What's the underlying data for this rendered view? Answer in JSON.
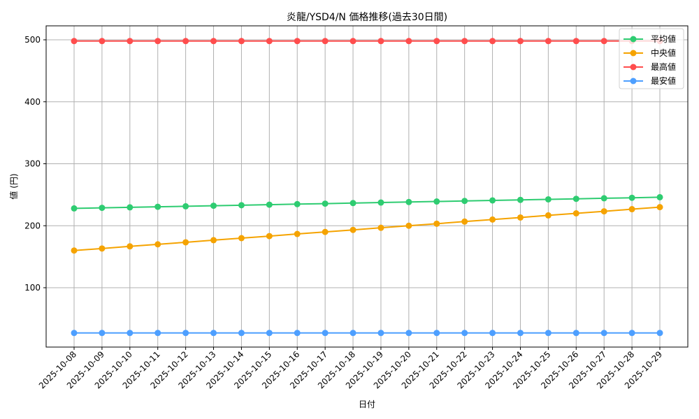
{
  "chart_data": {
    "type": "line",
    "title": "炎龍/YSD4/N 価格推移(過去30日間)",
    "xlabel": "日付",
    "ylabel": "値 (円)",
    "ylim": [
      8,
      522
    ],
    "yticks": [
      100,
      200,
      300,
      400,
      500
    ],
    "grid": true,
    "legend_position": "upper right",
    "categories": [
      "2025-10-08",
      "2025-10-09",
      "2025-10-10",
      "2025-10-11",
      "2025-10-12",
      "2025-10-13",
      "2025-10-14",
      "2025-10-15",
      "2025-10-16",
      "2025-10-17",
      "2025-10-18",
      "2025-10-19",
      "2025-10-20",
      "2025-10-21",
      "2025-10-22",
      "2025-10-23",
      "2025-10-24",
      "2025-10-25",
      "2025-10-26",
      "2025-10-27",
      "2025-10-28",
      "2025-10-29"
    ],
    "series": [
      {
        "name": "平均値",
        "color": "#2ecc71",
        "values": [
          228.0,
          228.9,
          229.7,
          230.6,
          231.4,
          232.3,
          233.1,
          234.0,
          234.9,
          235.7,
          236.6,
          237.4,
          238.3,
          239.1,
          240.0,
          240.9,
          241.7,
          242.6,
          243.4,
          244.3,
          245.1,
          246.0
        ]
      },
      {
        "name": "中央値",
        "color": "#f5a300",
        "values": [
          160.0,
          163.3,
          166.7,
          170.0,
          173.3,
          176.7,
          180.0,
          183.3,
          186.7,
          190.0,
          193.3,
          196.7,
          200.0,
          203.3,
          206.7,
          210.0,
          213.3,
          216.7,
          220.0,
          223.3,
          226.7,
          230.0
        ]
      },
      {
        "name": "最高値",
        "color": "#ff4d4d",
        "values": [
          498,
          498,
          498,
          498,
          498,
          498,
          498,
          498,
          498,
          498,
          498,
          498,
          498,
          498,
          498,
          498,
          498,
          498,
          498,
          498,
          498,
          498
        ]
      },
      {
        "name": "最安値",
        "color": "#4d9fff",
        "values": [
          27,
          27,
          27,
          27,
          27,
          27,
          27,
          27,
          27,
          27,
          27,
          27,
          27,
          27,
          27,
          27,
          27,
          27,
          27,
          27,
          27,
          27
        ]
      }
    ]
  }
}
